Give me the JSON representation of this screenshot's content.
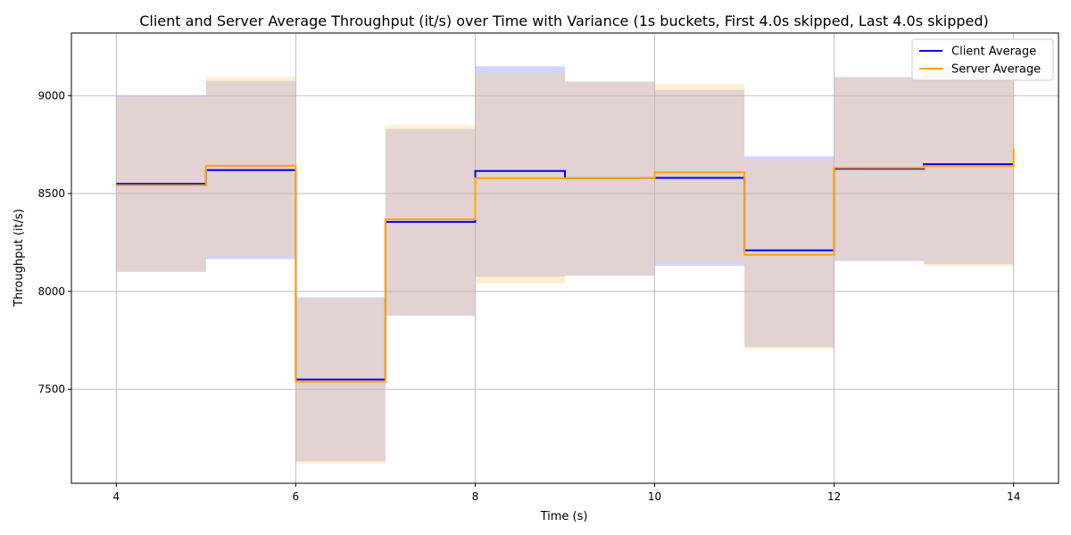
{
  "chart_data": {
    "type": "line",
    "title": "Client and Server Average Throughput (it/s) over Time with Variance (1s buckets, First 4.0s skipped, Last 4.0s skipped)",
    "xlabel": "Time (s)",
    "ylabel": "Throughput (it/s)",
    "xlim": [
      3.5,
      14.5
    ],
    "ylim": [
      7020,
      9320
    ],
    "x_ticks": [
      4,
      6,
      8,
      10,
      12,
      14
    ],
    "y_ticks": [
      7500,
      8000,
      8500,
      9000
    ],
    "grid": true,
    "legend_position": "top-right",
    "step": "post",
    "x": [
      4,
      5,
      6,
      7,
      8,
      9,
      10,
      11,
      12,
      13,
      14
    ],
    "series": [
      {
        "name": "Client Average",
        "color": "#0000ff",
        "band_color": "#8080ff",
        "values": [
          8550,
          8620,
          7550,
          8355,
          8615,
          8578,
          8580,
          8210,
          8627,
          8650,
          8650
        ],
        "lower": [
          8100,
          8165,
          7133,
          7875,
          8075,
          8080,
          8130,
          7715,
          8155,
          8140,
          8140
        ],
        "upper": [
          9000,
          9075,
          7970,
          8830,
          9150,
          9072,
          9030,
          8690,
          9095,
          9150,
          9150
        ]
      },
      {
        "name": "Server Average",
        "color": "#ffa500",
        "band_color": "#ffd27f",
        "values": [
          8542,
          8642,
          7538,
          8368,
          8578,
          8578,
          8608,
          8187,
          8632,
          8640,
          8730
        ],
        "lower": [
          8100,
          8180,
          7120,
          7880,
          8040,
          8080,
          8150,
          7705,
          8160,
          8130,
          8130
        ],
        "upper": [
          8995,
          9095,
          7960,
          8850,
          9115,
          9072,
          9060,
          8670,
          9095,
          9150,
          9150
        ]
      }
    ]
  }
}
